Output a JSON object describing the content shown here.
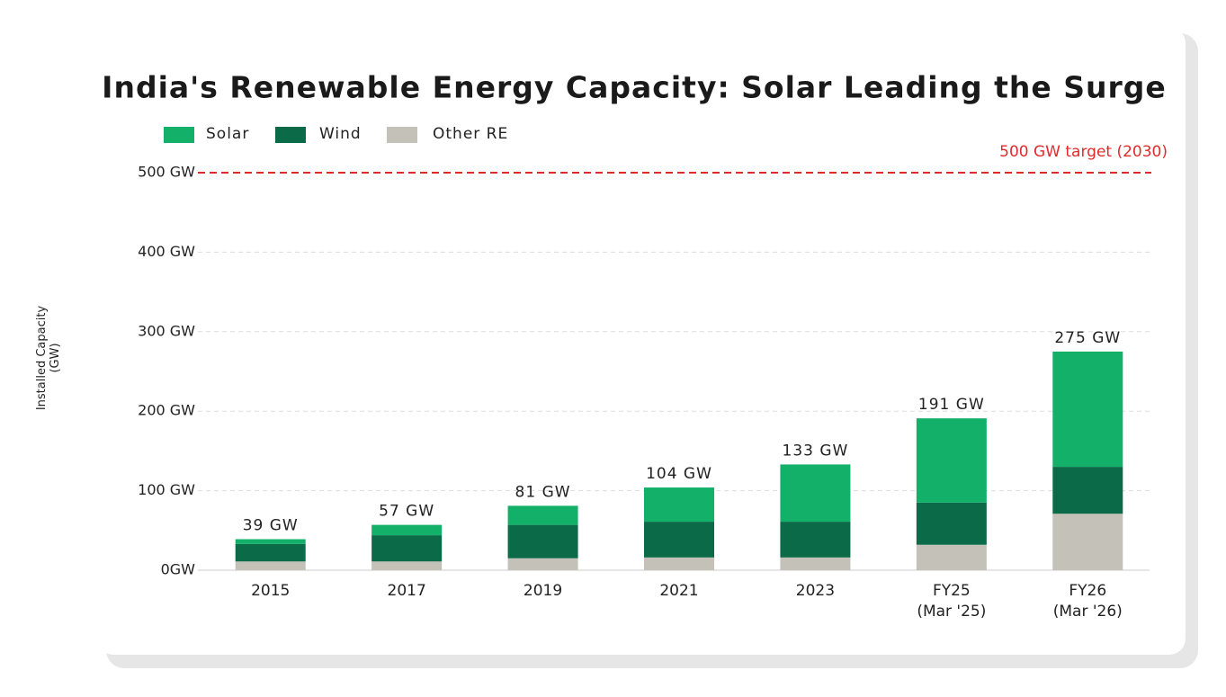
{
  "chart_data": {
    "type": "stacked-bar",
    "title": "India's Renewable Energy Capacity: Solar Leading the Surge",
    "y_label": "Installed Capacity\n(GW)",
    "categories": [
      "2015",
      "2017",
      "2019",
      "2021",
      "2023",
      "FY25\n(Mar '25)",
      "FY26\n(Mar '26)"
    ],
    "series": [
      {
        "name": "Other RE",
        "color": "#c4c1b8",
        "values": [
          11,
          11,
          15,
          16,
          16,
          32,
          71
        ]
      },
      {
        "name": "Wind",
        "color": "#0b6b48",
        "values": [
          22,
          33,
          42,
          45,
          45,
          53,
          59
        ]
      },
      {
        "name": "Solar",
        "color": "#13b06a",
        "values": [
          6,
          13,
          24,
          43,
          72,
          106,
          145
        ]
      }
    ],
    "legend_order": [
      2,
      1,
      0
    ],
    "totals": {
      "values": [
        39,
        57,
        81,
        104,
        133,
        191,
        275
      ],
      "value_labels": [
        "39 GW",
        "57 GW",
        "81 GW",
        "104 GW",
        "133 GW",
        "191 GW",
        "275 GW"
      ]
    },
    "ylim": [
      0,
      500
    ],
    "yticks": [
      {
        "value": 0,
        "label": "0GW"
      },
      {
        "value": 100,
        "label": "100 GW"
      },
      {
        "value": 200,
        "label": "200 GW"
      },
      {
        "value": 300,
        "label": "300 GW"
      },
      {
        "value": 400,
        "label": "400 GW"
      },
      {
        "value": 500,
        "label": "500 GW"
      }
    ],
    "grid": true,
    "target": {
      "value": 500,
      "label": "500 GW target (2030)",
      "color": "#e02b2b"
    }
  }
}
